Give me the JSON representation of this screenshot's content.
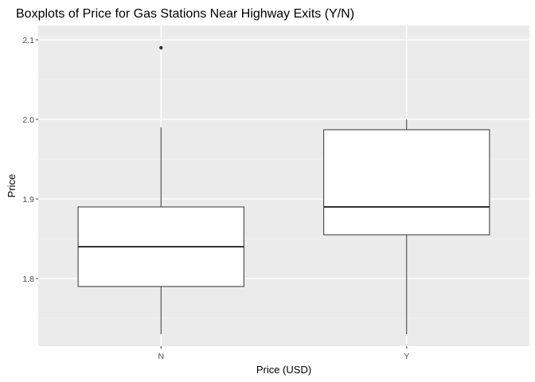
{
  "chart_data": {
    "type": "boxplot",
    "title": "Boxplots of Price for Gas Stations Near Highway Exits (Y/N)",
    "xlabel": "Price (USD)",
    "ylabel": "Price",
    "categories": [
      "N",
      "Y"
    ],
    "ylim": [
      1.715,
      2.118
    ],
    "yticks": [
      1.8,
      1.9,
      2.0,
      2.1
    ],
    "ytick_labels": [
      "1.8",
      "1.9",
      "2.0",
      "2.1"
    ],
    "grid": true,
    "background": "#ebebeb",
    "box_fill": "#ffffff",
    "box_stroke": "#333333",
    "boxes": [
      {
        "category": "N",
        "whisker_low": 1.73,
        "q1": 1.79,
        "median": 1.84,
        "q3": 1.89,
        "whisker_high": 1.99,
        "outliers": [
          2.09
        ]
      },
      {
        "category": "Y",
        "whisker_low": 1.73,
        "q1": 1.855,
        "median": 1.89,
        "q3": 1.987,
        "whisker_high": 2.0,
        "outliers": []
      }
    ]
  }
}
